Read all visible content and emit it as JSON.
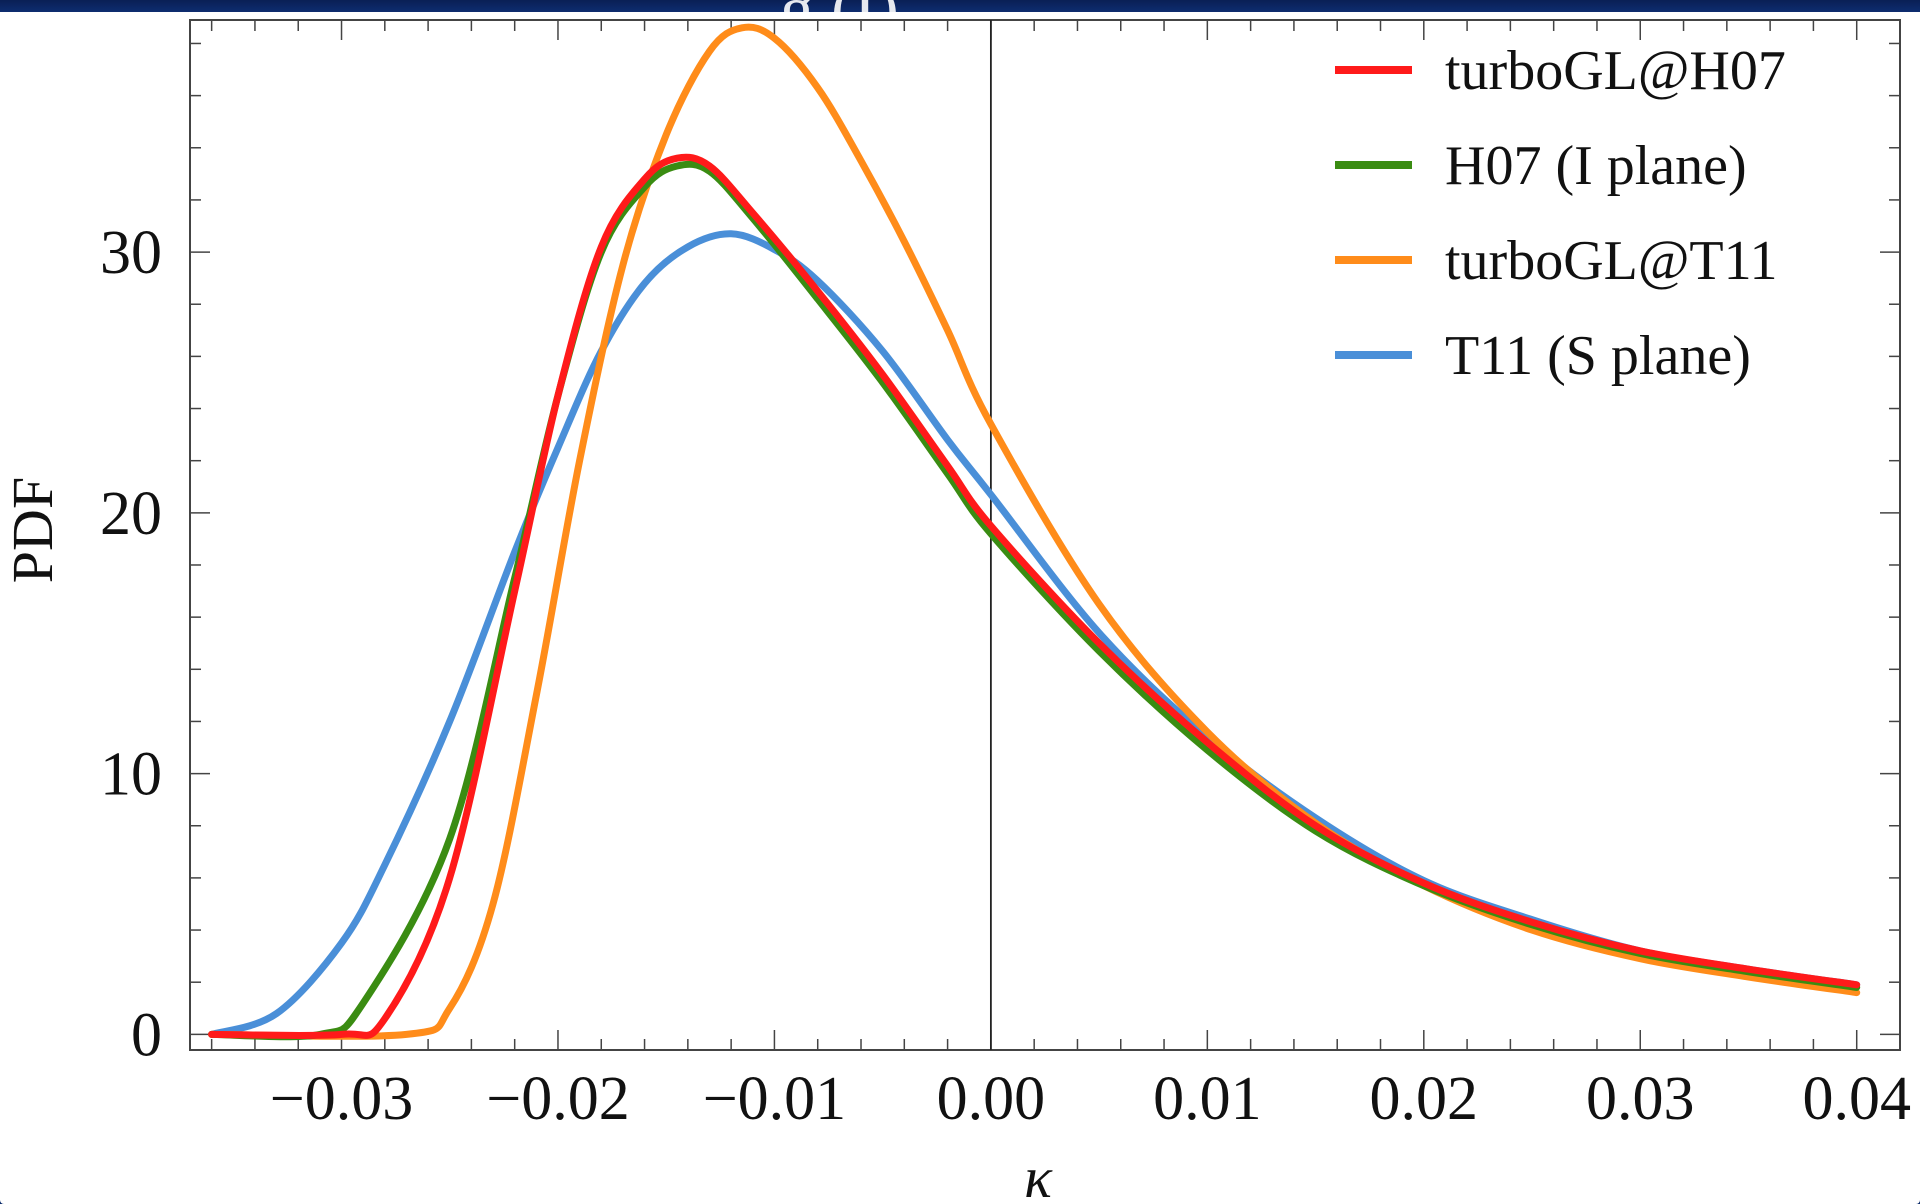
{
  "page": {
    "title_fragment": "g (I)"
  },
  "chart_data": {
    "type": "line",
    "title": "",
    "xlabel": "κ",
    "ylabel": "PDF",
    "xlim": [
      -0.037,
      0.042
    ],
    "ylim": [
      -0.6,
      38.9
    ],
    "x_ticks": [
      -0.03,
      -0.02,
      -0.01,
      0.0,
      0.01,
      0.02,
      0.03,
      0.04
    ],
    "x_tick_labels": [
      "−0.03",
      "−0.02",
      "−0.01",
      "0.00",
      "0.01",
      "0.02",
      "0.03",
      "0.04"
    ],
    "y_ticks": [
      0,
      10,
      20,
      30
    ],
    "y_tick_labels": [
      "0",
      "10",
      "20",
      "30"
    ],
    "vertical_reference_line_x": 0.0,
    "grid": false,
    "legend_position": "top-right",
    "series": [
      {
        "name": "turboGL@H07",
        "color": "#ff1a1a",
        "x": [
          -0.036,
          -0.03,
          -0.028,
          -0.025,
          -0.022,
          -0.02,
          -0.018,
          -0.016,
          -0.0145,
          -0.013,
          -0.011,
          -0.008,
          -0.005,
          -0.002,
          0.0,
          0.005,
          0.01,
          0.015,
          0.02,
          0.025,
          0.03,
          0.035,
          0.04
        ],
        "y": [
          0,
          0,
          0.6,
          6,
          17,
          24.5,
          30.2,
          32.8,
          33.6,
          33.3,
          31.5,
          28.5,
          25.3,
          21.8,
          19.5,
          15,
          11.2,
          8,
          5.8,
          4.3,
          3.2,
          2.5,
          1.9
        ]
      },
      {
        "name": "H07 (I plane)",
        "color": "#3a8c12",
        "x": [
          -0.036,
          -0.031,
          -0.029,
          -0.025,
          -0.022,
          -0.02,
          -0.018,
          -0.016,
          -0.0145,
          -0.013,
          -0.011,
          -0.008,
          -0.005,
          -0.002,
          0.0,
          0.005,
          0.01,
          0.015,
          0.02,
          0.025,
          0.03,
          0.035,
          0.04
        ],
        "y": [
          0,
          0,
          1.2,
          7.5,
          17.5,
          24.5,
          30,
          32.5,
          33.3,
          33.1,
          31.3,
          28.2,
          25,
          21.5,
          19.2,
          14.7,
          10.9,
          7.8,
          5.7,
          4.2,
          3.1,
          2.4,
          1.8
        ]
      },
      {
        "name": "turboGL@T11",
        "color": "#ff8c1a",
        "x": [
          -0.036,
          -0.027,
          -0.025,
          -0.023,
          -0.021,
          -0.019,
          -0.017,
          -0.015,
          -0.013,
          -0.0115,
          -0.01,
          -0.008,
          -0.006,
          -0.004,
          -0.002,
          0.0,
          0.005,
          0.01,
          0.015,
          0.02,
          0.025,
          0.03,
          0.035,
          0.04
        ],
        "y": [
          0,
          0,
          1,
          5,
          13,
          22,
          29.5,
          34.5,
          37.7,
          38.6,
          38.2,
          36.3,
          33.5,
          30.4,
          27,
          23.4,
          16.5,
          11.6,
          8.1,
          5.7,
          4,
          2.9,
          2.2,
          1.6
        ]
      },
      {
        "name": "T11 (S plane)",
        "color": "#4a8fd8",
        "x": [
          -0.036,
          -0.033,
          -0.03,
          -0.028,
          -0.025,
          -0.022,
          -0.02,
          -0.018,
          -0.016,
          -0.014,
          -0.012,
          -0.01,
          -0.008,
          -0.005,
          -0.002,
          0.0,
          0.005,
          0.01,
          0.015,
          0.02,
          0.025,
          0.03,
          0.035,
          0.04
        ],
        "y": [
          0,
          0.8,
          3.5,
          6.5,
          12,
          18.5,
          22.5,
          26.2,
          28.8,
          30.2,
          30.7,
          30.1,
          28.9,
          26.2,
          22.8,
          20.7,
          15.4,
          11.4,
          8.3,
          5.9,
          4.4,
          3.2,
          2.5,
          1.9
        ]
      }
    ]
  }
}
